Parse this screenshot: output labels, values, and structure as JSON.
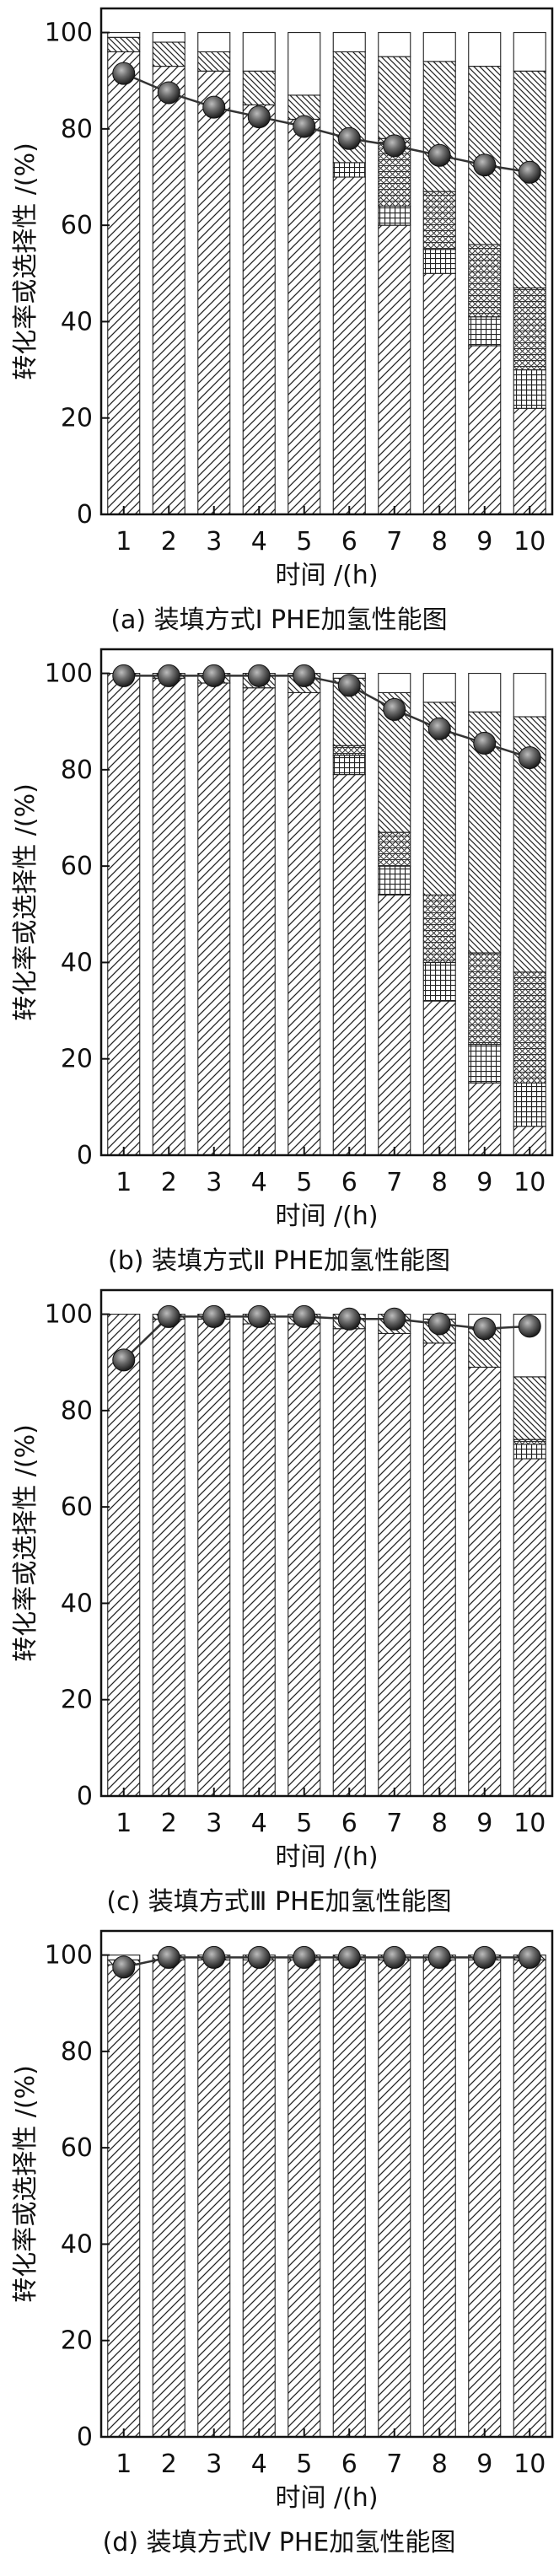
{
  "chart_data": [
    {
      "type": "bar",
      "caption": "(a) 装填方式Ⅰ PHE加氢性能图",
      "xlabel": "时间 /(h)",
      "ylabel": "转化率或选择性 /(%)",
      "ylim": [
        0,
        105
      ],
      "yticks": [
        0,
        20,
        40,
        60,
        80,
        100
      ],
      "categories": [
        "1",
        "2",
        "3",
        "4",
        "5",
        "6",
        "7",
        "8",
        "9",
        "10"
      ],
      "series": [
        {
          "fill": "diag-right",
          "values": [
            96,
            93,
            92,
            85,
            82,
            70,
            60,
            50,
            35,
            22
          ]
        },
        {
          "fill": "dense-grid",
          "values": [
            0,
            0,
            0,
            0,
            0,
            3,
            4,
            5,
            6,
            8
          ]
        },
        {
          "fill": "cross-grid",
          "values": [
            0,
            0,
            0,
            0,
            0,
            0,
            14,
            12,
            15,
            17
          ]
        },
        {
          "fill": "diag-left",
          "values": [
            3,
            5,
            4,
            7,
            5,
            23,
            17,
            27,
            37,
            45
          ]
        },
        {
          "fill": "white",
          "values": [
            1,
            2,
            4,
            8,
            13,
            4,
            5,
            6,
            7,
            8
          ]
        }
      ],
      "line": {
        "values": [
          91.5,
          87.5,
          84.5,
          82.5,
          80.5,
          78,
          76.5,
          74.5,
          72.5,
          71
        ]
      }
    },
    {
      "type": "bar",
      "caption": "(b) 装填方式Ⅱ PHE加氢性能图",
      "xlabel": "时间 /(h)",
      "ylabel": "转化率或选择性 /(%)",
      "ylim": [
        0,
        105
      ],
      "yticks": [
        0,
        20,
        40,
        60,
        80,
        100
      ],
      "categories": [
        "1",
        "2",
        "3",
        "4",
        "5",
        "6",
        "7",
        "8",
        "9",
        "10"
      ],
      "series": [
        {
          "fill": "diag-right",
          "values": [
            100,
            99,
            98,
            97,
            96,
            79,
            54,
            32,
            15,
            6
          ]
        },
        {
          "fill": "dense-grid",
          "values": [
            0,
            0,
            0,
            0,
            0,
            4,
            6,
            8,
            8,
            9
          ]
        },
        {
          "fill": "cross-grid",
          "values": [
            0,
            0,
            0,
            0,
            0,
            2,
            7,
            14,
            19,
            23
          ]
        },
        {
          "fill": "diag-left",
          "values": [
            0,
            1,
            2,
            3,
            4,
            14,
            29,
            40,
            50,
            53
          ]
        },
        {
          "fill": "white",
          "values": [
            0,
            0,
            0,
            0,
            0,
            1,
            4,
            6,
            8,
            9
          ]
        }
      ],
      "line": {
        "values": [
          99.5,
          99.5,
          99.5,
          99.5,
          99.5,
          97.5,
          92.5,
          88.5,
          85.5,
          82.5
        ]
      }
    },
    {
      "type": "bar",
      "caption": "(c) 装填方式Ⅲ PHE加氢性能图",
      "xlabel": "时间 /(h)",
      "ylabel": "转化率或选择性 /(%)",
      "ylim": [
        0,
        105
      ],
      "yticks": [
        0,
        20,
        40,
        60,
        80,
        100
      ],
      "categories": [
        "1",
        "2",
        "3",
        "4",
        "5",
        "6",
        "7",
        "8",
        "9",
        "10"
      ],
      "series": [
        {
          "fill": "diag-right",
          "values": [
            100,
            99,
            99,
            98,
            98,
            97,
            96,
            94,
            89,
            70
          ]
        },
        {
          "fill": "dense-grid",
          "values": [
            0,
            0,
            0,
            0,
            0,
            0,
            0,
            0,
            0,
            3
          ]
        },
        {
          "fill": "cross-grid",
          "values": [
            0,
            0,
            0,
            0,
            0,
            0,
            0,
            0,
            0,
            1
          ]
        },
        {
          "fill": "diag-left",
          "values": [
            0,
            1,
            1,
            2,
            2,
            3,
            4,
            5,
            8,
            13
          ]
        },
        {
          "fill": "white",
          "values": [
            0,
            0,
            0,
            0,
            0,
            0,
            0,
            1,
            3,
            13
          ]
        }
      ],
      "line": {
        "values": [
          90.5,
          99.5,
          99.5,
          99.5,
          99.5,
          99,
          99,
          98,
          97,
          97.5
        ]
      }
    },
    {
      "type": "bar",
      "caption": "(d) 装填方式Ⅳ PHE加氢性能图",
      "xlabel": "时间 /(h)",
      "ylabel": "转化率或选择性 /(%)",
      "ylim": [
        0,
        105
      ],
      "yticks": [
        0,
        20,
        40,
        60,
        80,
        100
      ],
      "categories": [
        "1",
        "2",
        "3",
        "4",
        "5",
        "6",
        "7",
        "8",
        "9",
        "10"
      ],
      "series": [
        {
          "fill": "diag-right",
          "values": [
            98,
            99,
            99,
            99,
            99,
            99,
            99,
            99,
            99,
            99
          ]
        },
        {
          "fill": "dense-grid",
          "values": [
            0,
            0,
            0,
            0,
            0,
            0,
            0,
            0,
            0,
            0
          ]
        },
        {
          "fill": "cross-grid",
          "values": [
            0,
            0,
            0,
            0,
            0,
            0,
            0,
            0,
            0,
            0
          ]
        },
        {
          "fill": "diag-left",
          "values": [
            1,
            1,
            1,
            1,
            1,
            1,
            1,
            1,
            1,
            1
          ]
        },
        {
          "fill": "white",
          "values": [
            1,
            0,
            0,
            0,
            0,
            0,
            0,
            0,
            0,
            0
          ]
        }
      ],
      "line": {
        "values": [
          97.5,
          99.5,
          99.5,
          99.5,
          99.5,
          99.5,
          99.5,
          99.5,
          99.5,
          99.5
        ]
      }
    }
  ]
}
